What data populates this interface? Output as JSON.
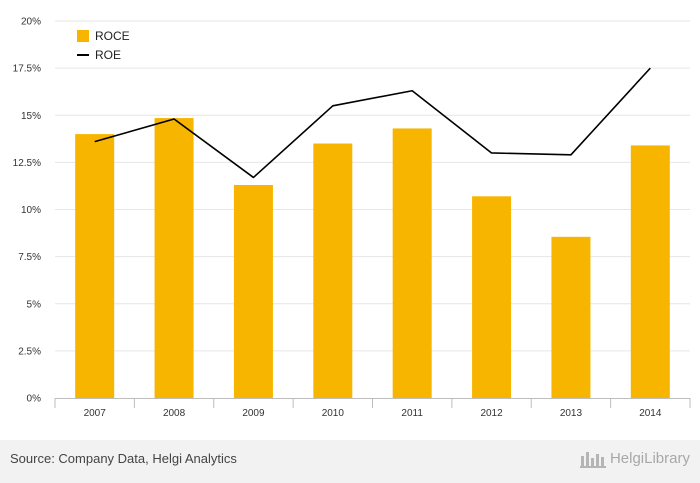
{
  "chart_data": {
    "type": "bar",
    "categories": [
      "2007",
      "2008",
      "2009",
      "2010",
      "2011",
      "2012",
      "2013",
      "2014"
    ],
    "series": [
      {
        "name": "ROCE",
        "type": "bar",
        "color": "#f7b500",
        "values": [
          14.0,
          14.85,
          11.3,
          13.5,
          14.3,
          10.7,
          8.55,
          13.4
        ]
      },
      {
        "name": "ROE",
        "type": "line",
        "color": "#000000",
        "values": [
          13.6,
          14.8,
          11.7,
          15.5,
          16.3,
          13.0,
          12.9,
          17.5
        ]
      }
    ],
    "ylim": [
      0,
      20
    ],
    "yticks": [
      0,
      2.5,
      5,
      7.5,
      10,
      12.5,
      15,
      17.5,
      20
    ],
    "ytick_labels": [
      "0%",
      "2.5%",
      "5%",
      "7.5%",
      "10%",
      "12.5%",
      "15%",
      "17.5%",
      "20%"
    ],
    "grid": true,
    "legend_position": "top-left",
    "title": "",
    "xlabel": "",
    "ylabel": ""
  },
  "footer": {
    "source": "Source: Company Data, Helgi Analytics",
    "brand": "HelgiLibrary"
  },
  "icons": {
    "brand_logo": "helgi-logo-icon"
  }
}
